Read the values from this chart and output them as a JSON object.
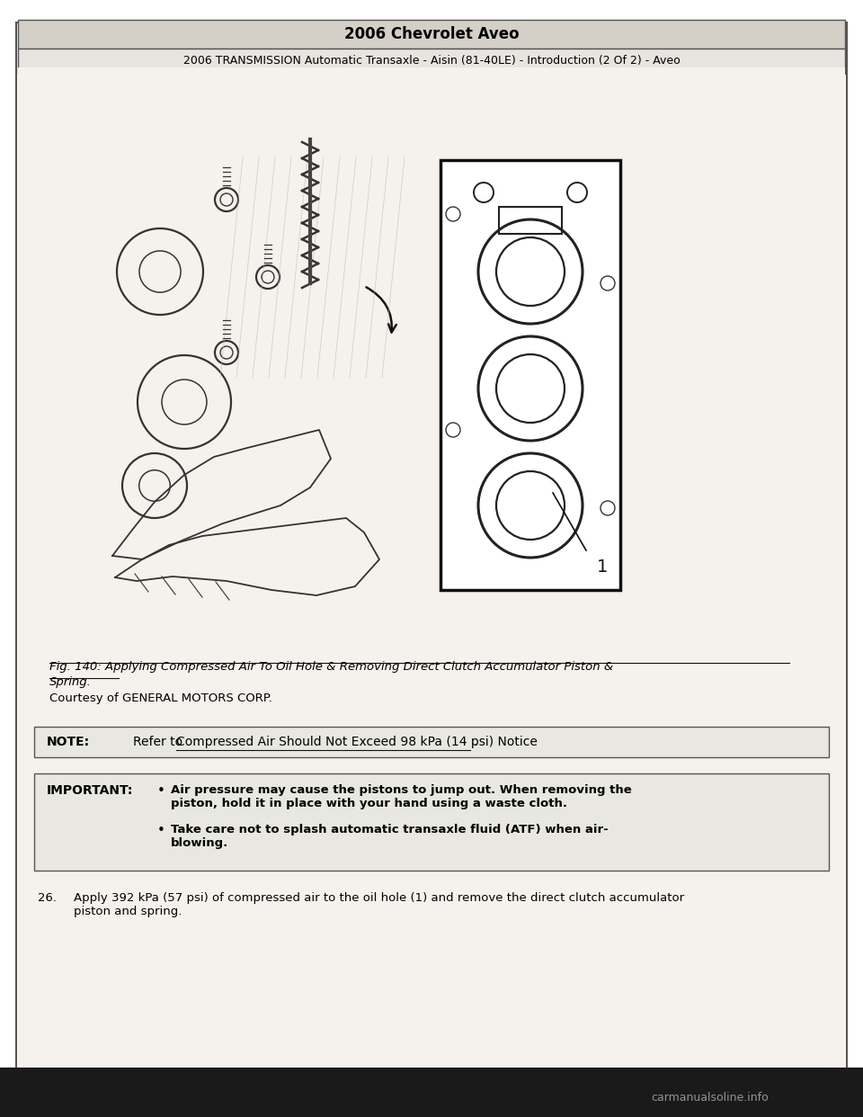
{
  "title_row1": "2006 Chevrolet Aveo",
  "title_row2": "2006 TRANSMISSION Automatic Transaxle - Aisin (81-40LE) - Introduction (2 Of 2) - Aveo",
  "fig_caption_line1": "Fig. 140: Applying Compressed Air To Oil Hole & Removing Direct Clutch Accumulator Piston &",
  "fig_caption_line2": "Spring.",
  "courtesy_text": "Courtesy of GENERAL MOTORS CORP.",
  "note_label": "NOTE:",
  "note_text_plain": "Refer to ",
  "note_text_underline": "Compressed Air Should Not Exceed 98 kPa (14 psi) Notice",
  "note_text_end": " .",
  "important_label": "IMPORTANT:",
  "bullet1_bold": "Air pressure may cause the pistons to jump out. When removing the\npiston, hold it in place with your hand using a waste cloth.",
  "bullet2_bold": "Take care not to splash automatic transaxle fluid (ATF) when air-\nblowing.",
  "step26_num": "26.",
  "step26_text": "Apply 392 kPa (57 psi) of compressed air to the oil hole (1) and remove the direct clutch accumulator\npiston and spring.",
  "watermark": "carmanualsoline.info",
  "bg_color": "#ffffff",
  "header_bg": "#d4d0c8",
  "body_bg": "#f5f2ed",
  "text_color": "#000000",
  "bottom_bar_color": "#1a1a1a"
}
